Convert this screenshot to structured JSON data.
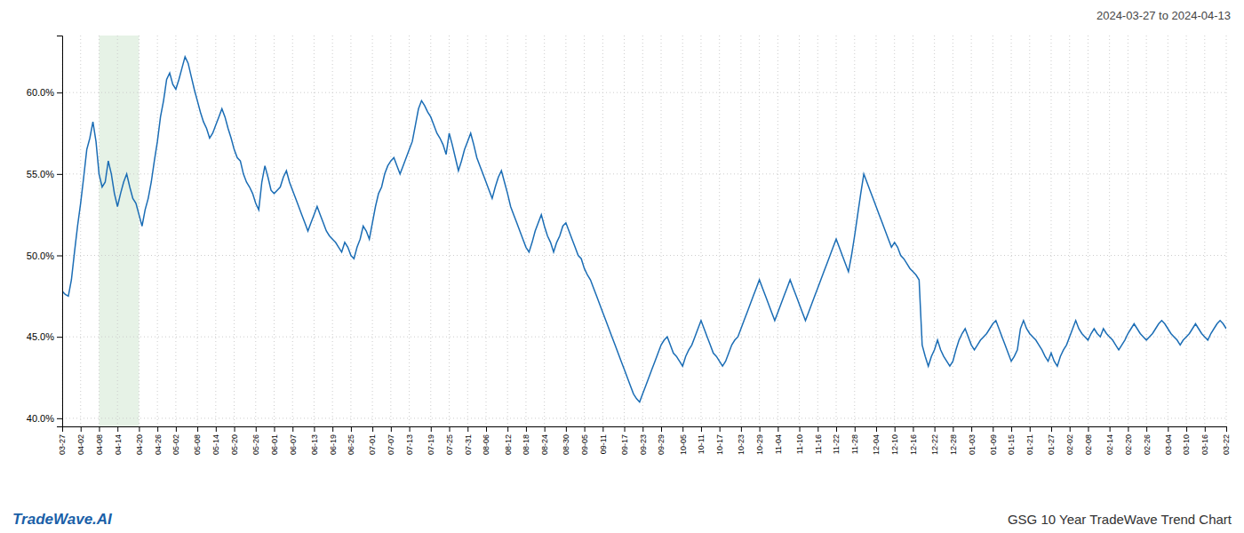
{
  "chart_data": {
    "type": "line",
    "title": "GSG 10 Year TradeWave Trend Chart",
    "subtitle": "2024-03-27 to 2024-04-13",
    "annotations": [
      "TradeWave.AI"
    ],
    "color": "#1b6db5",
    "grid": true,
    "ylim": [
      39.5,
      63.5
    ],
    "yticks": [
      {
        "value": 40.0,
        "label": "40.0%"
      },
      {
        "value": 45.0,
        "label": "45.0%"
      },
      {
        "value": 50.0,
        "label": "50.0%"
      },
      {
        "value": 55.0,
        "label": "55.0%"
      },
      {
        "value": 60.0,
        "label": "60.0%"
      }
    ],
    "shade": {
      "x": [
        "04-08",
        "04-20"
      ],
      "color": "#d6ead6"
    },
    "categories": [
      "03-27",
      null,
      null,
      null,
      null,
      null,
      "04-02",
      null,
      null,
      null,
      null,
      null,
      "04-08",
      null,
      null,
      null,
      null,
      null,
      "04-14",
      null,
      null,
      null,
      null,
      null,
      null,
      "04-20",
      null,
      null,
      null,
      null,
      null,
      "04-26",
      null,
      null,
      null,
      null,
      null,
      "05-02",
      null,
      null,
      null,
      null,
      null,
      null,
      "05-08",
      null,
      null,
      null,
      null,
      null,
      "05-14",
      null,
      null,
      null,
      null,
      null,
      "05-20",
      null,
      null,
      null,
      null,
      null,
      null,
      "05-26",
      null,
      null,
      null,
      null,
      null,
      "06-01",
      null,
      null,
      null,
      null,
      null,
      "06-07",
      null,
      null,
      null,
      null,
      null,
      null,
      "06-13",
      null,
      null,
      null,
      null,
      null,
      "06-19",
      null,
      null,
      null,
      null,
      null,
      "06-25",
      null,
      null,
      null,
      null,
      null,
      null,
      "07-01",
      null,
      null,
      null,
      null,
      null,
      "07-07",
      null,
      null,
      null,
      null,
      null,
      "07-13",
      null,
      null,
      null,
      null,
      null,
      null,
      "07-19",
      null,
      null,
      null,
      null,
      null,
      "07-25",
      null,
      null,
      null,
      null,
      null,
      "07-31",
      null,
      null,
      null,
      null,
      null,
      "08-06",
      null,
      null,
      null,
      null,
      null,
      null,
      "08-12",
      null,
      null,
      null,
      null,
      null,
      "08-18",
      null,
      null,
      null,
      null,
      null,
      "08-24",
      null,
      null,
      null,
      null,
      null,
      null,
      "08-30",
      null,
      null,
      null,
      null,
      null,
      "09-05",
      null,
      null,
      null,
      null,
      null,
      "09-11",
      null,
      null,
      null,
      null,
      null,
      null,
      "09-17",
      null,
      null,
      null,
      null,
      null,
      "09-23",
      null,
      null,
      null,
      null,
      null,
      "09-29",
      null,
      null,
      null,
      null,
      null,
      null,
      "10-05",
      null,
      null,
      null,
      null,
      null,
      "10-11",
      null,
      null,
      null,
      null,
      null,
      "10-17",
      null,
      null,
      null,
      null,
      null,
      null,
      "10-23",
      null,
      null,
      null,
      null,
      null,
      "10-29",
      null,
      null,
      null,
      null,
      null,
      "11-04",
      null,
      null,
      null,
      null,
      null,
      null,
      "11-10",
      null,
      null,
      null,
      null,
      null,
      "11-16",
      null,
      null,
      null,
      null,
      null,
      "11-22",
      null,
      null,
      null,
      null,
      null,
      "11-28",
      null,
      null,
      null,
      null,
      null,
      null,
      "12-04",
      null,
      null,
      null,
      null,
      null,
      "12-10",
      null,
      null,
      null,
      null,
      null,
      "12-16",
      null,
      null,
      null,
      null,
      null,
      null,
      "12-22",
      null,
      null,
      null,
      null,
      null,
      "12-28",
      null,
      null,
      null,
      null,
      null,
      "01-03",
      null,
      null,
      null,
      null,
      null,
      null,
      "01-09",
      null,
      null,
      null,
      null,
      null,
      "01-15",
      null,
      null,
      null,
      null,
      null,
      "01-21",
      null,
      null,
      null,
      null,
      null,
      null,
      "01-27",
      null,
      null,
      null,
      null,
      null,
      "02-02",
      null,
      null,
      null,
      null,
      null,
      "02-08",
      null,
      null,
      null,
      null,
      null,
      null,
      "02-14",
      null,
      null,
      null,
      null,
      null,
      "02-20",
      null,
      null,
      null,
      null,
      null,
      "02-26",
      null,
      null,
      null,
      null,
      null,
      null,
      "03-04",
      null,
      null,
      null,
      null,
      null,
      "03-10",
      null,
      null,
      null,
      null,
      null,
      "03-16",
      null,
      null,
      null,
      null,
      null,
      null,
      "03-22"
    ],
    "values": [
      47.8,
      47.6,
      47.5,
      48.5,
      50.2,
      51.8,
      53.2,
      54.8,
      56.5,
      57.2,
      58.2,
      57.0,
      55.0,
      54.2,
      54.5,
      55.8,
      55.0,
      53.8,
      53.0,
      53.8,
      54.5,
      55.0,
      54.2,
      53.5,
      53.2,
      52.5,
      51.8,
      52.8,
      53.5,
      54.5,
      55.8,
      57.0,
      58.5,
      59.5,
      60.8,
      61.2,
      60.5,
      60.2,
      60.8,
      61.5,
      62.2,
      61.8,
      61.0,
      60.2,
      59.5,
      58.8,
      58.2,
      57.8,
      57.2,
      57.5,
      58.0,
      58.5,
      59.0,
      58.5,
      57.8,
      57.2,
      56.5,
      56.0,
      55.8,
      55.0,
      54.5,
      54.2,
      53.8,
      53.2,
      52.8,
      54.5,
      55.5,
      54.8,
      54.0,
      53.8,
      54.0,
      54.2,
      54.8,
      55.2,
      54.5,
      54.0,
      53.5,
      53.0,
      52.5,
      52.0,
      51.5,
      52.0,
      52.5,
      53.0,
      52.5,
      52.0,
      51.5,
      51.2,
      51.0,
      50.8,
      50.5,
      50.2,
      50.8,
      50.5,
      50.0,
      49.8,
      50.5,
      51.0,
      51.8,
      51.5,
      51.0,
      52.0,
      53.0,
      53.8,
      54.2,
      55.0,
      55.5,
      55.8,
      56.0,
      55.5,
      55.0,
      55.5,
      56.0,
      56.5,
      57.0,
      58.0,
      59.0,
      59.5,
      59.2,
      58.8,
      58.5,
      58.0,
      57.5,
      57.2,
      56.8,
      56.2,
      57.5,
      56.8,
      56.0,
      55.2,
      55.8,
      56.5,
      57.0,
      57.5,
      56.8,
      56.0,
      55.5,
      55.0,
      54.5,
      54.0,
      53.5,
      54.2,
      54.8,
      55.2,
      54.5,
      53.8,
      53.0,
      52.5,
      52.0,
      51.5,
      51.0,
      50.5,
      50.2,
      50.8,
      51.5,
      52.0,
      52.5,
      51.8,
      51.2,
      50.8,
      50.2,
      50.8,
      51.2,
      51.8,
      52.0,
      51.5,
      51.0,
      50.5,
      50.0,
      49.8,
      49.2,
      48.8,
      48.5,
      48.0,
      47.5,
      47.0,
      46.5,
      46.0,
      45.5,
      45.0,
      44.5,
      44.0,
      43.5,
      43.0,
      42.5,
      42.0,
      41.5,
      41.2,
      41.0,
      41.5,
      42.0,
      42.5,
      43.0,
      43.5,
      44.0,
      44.5,
      44.8,
      45.0,
      44.5,
      44.0,
      43.8,
      43.5,
      43.2,
      43.8,
      44.2,
      44.5,
      45.0,
      45.5,
      46.0,
      45.5,
      45.0,
      44.5,
      44.0,
      43.8,
      43.5,
      43.2,
      43.5,
      44.0,
      44.5,
      44.8,
      45.0,
      45.5,
      46.0,
      46.5,
      47.0,
      47.5,
      48.0,
      48.5,
      48.0,
      47.5,
      47.0,
      46.5,
      46.0,
      46.5,
      47.0,
      47.5,
      48.0,
      48.5,
      48.0,
      47.5,
      47.0,
      46.5,
      46.0,
      46.5,
      47.0,
      47.5,
      48.0,
      48.5,
      49.0,
      49.5,
      50.0,
      50.5,
      51.0,
      50.5,
      50.0,
      49.5,
      49.0,
      50.0,
      51.2,
      52.5,
      53.8,
      55.0,
      54.5,
      54.0,
      53.5,
      53.0,
      52.5,
      52.0,
      51.5,
      51.0,
      50.5,
      50.8,
      50.5,
      50.0,
      49.8,
      49.5,
      49.2,
      49.0,
      48.8,
      48.5,
      44.5,
      43.8,
      43.2,
      43.8,
      44.2,
      44.8,
      44.2,
      43.8,
      43.5,
      43.2,
      43.5,
      44.2,
      44.8,
      45.2,
      45.5,
      45.0,
      44.5,
      44.2,
      44.5,
      44.8,
      45.0,
      45.2,
      45.5,
      45.8,
      46.0,
      45.5,
      45.0,
      44.5,
      44.0,
      43.5,
      43.8,
      44.2,
      45.5,
      46.0,
      45.5,
      45.2,
      45.0,
      44.8,
      44.5,
      44.2,
      43.8,
      43.5,
      44.0,
      43.5,
      43.2,
      43.8,
      44.2,
      44.5,
      45.0,
      45.5,
      46.0,
      45.5,
      45.2,
      45.0,
      44.8,
      45.2,
      45.5,
      45.2,
      45.0,
      45.5,
      45.2,
      45.0,
      44.8,
      44.5,
      44.2,
      44.5,
      44.8,
      45.2,
      45.5,
      45.8,
      45.5,
      45.2,
      45.0,
      44.8,
      45.0,
      45.2,
      45.5,
      45.8,
      46.0,
      45.8,
      45.5,
      45.2,
      45.0,
      44.8,
      44.5,
      44.8,
      45.0,
      45.2,
      45.5,
      45.8,
      45.5,
      45.2,
      45.0,
      44.8,
      45.2,
      45.5,
      45.8,
      46.0,
      45.8,
      45.5
    ]
  }
}
